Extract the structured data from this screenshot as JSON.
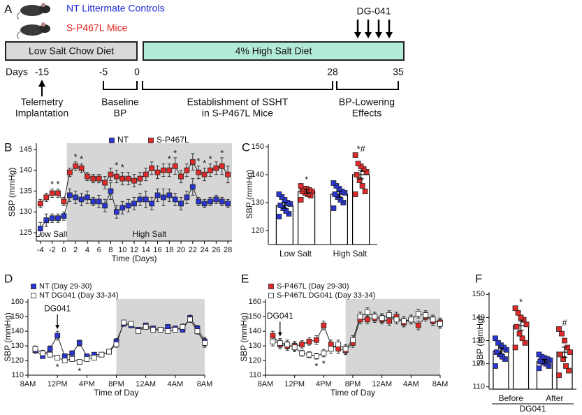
{
  "timeline": {
    "panel": "A",
    "legend": [
      {
        "label": "NT Littermate Controls",
        "color": "#1f2bd6"
      },
      {
        "label": "S-P467L Mice",
        "color": "#e0231f"
      }
    ],
    "treatment": "DG-041",
    "diets": [
      {
        "label": "Low Salt Chow Diet",
        "color": "#d9d9d9"
      },
      {
        "label": "4% High Salt Diet",
        "color": "#b3ead6"
      }
    ],
    "days_label": "Days",
    "days": [
      -15,
      -5,
      0,
      28,
      35
    ],
    "phases": [
      {
        "label": [
          "Telemetry",
          "Implantation"
        ]
      },
      {
        "label": [
          "Baseline",
          "BP"
        ]
      },
      {
        "label": [
          "Establishment of SSHT",
          "in S-P467L Mice"
        ]
      },
      {
        "label": [
          "BP-Lowering",
          "Effects"
        ]
      }
    ]
  },
  "chart_data": [
    {
      "type": "line",
      "panel": "B",
      "xlabel": "Time (Days)",
      "ylabel": "SBP (mmHg)",
      "x": [
        -4,
        -3,
        -2,
        -1,
        0,
        1,
        2,
        3,
        4,
        5,
        6,
        7,
        8,
        9,
        10,
        11,
        12,
        13,
        14,
        15,
        16,
        17,
        18,
        19,
        20,
        21,
        22,
        23,
        24,
        25,
        26,
        27,
        28
      ],
      "xlim": [
        -4.7,
        28.7
      ],
      "xticks": [
        -4,
        -2,
        0,
        2,
        4,
        6,
        8,
        10,
        12,
        14,
        16,
        18,
        20,
        22,
        24,
        26,
        28
      ],
      "ylim": [
        123,
        146.5
      ],
      "yticks": [
        125,
        130,
        135,
        140,
        145
      ],
      "legend": "top",
      "shade_color": "#d6d6d6",
      "regions": [
        {
          "label": "Low Salt",
          "x": [
            -4.7,
            0.5
          ]
        },
        {
          "label": "High Salt",
          "x": [
            0.5,
            28.7
          ],
          "shaded": true
        }
      ],
      "series": [
        {
          "name": "NT",
          "color": "#2b35d0",
          "values": [
            126,
            128,
            128.5,
            128.5,
            129,
            134,
            133.5,
            133,
            133.5,
            132.5,
            132.5,
            131.5,
            135,
            130,
            131,
            131.5,
            132,
            133,
            133,
            132,
            134,
            133.5,
            134,
            133,
            132,
            133.5,
            136,
            132.5,
            132,
            132.5,
            133,
            132.5,
            132
          ],
          "errors": [
            1.5,
            1.5,
            1,
            1,
            1,
            1.5,
            1.5,
            1.5,
            1.5,
            1,
            1.5,
            1.5,
            2,
            1.5,
            1.5,
            1.5,
            1.5,
            1.5,
            2,
            1.5,
            1.5,
            2,
            1.5,
            1.5,
            1.5,
            1.5,
            2,
            1,
            1,
            1,
            1,
            1,
            1
          ]
        },
        {
          "name": "S-P467L",
          "color": "#e02a2a",
          "values": [
            132,
            133.5,
            134.5,
            134.5,
            132.5,
            139.5,
            141,
            140.5,
            138.5,
            138,
            138,
            137,
            139,
            138.5,
            138,
            138,
            137.5,
            138,
            139,
            140.5,
            139.5,
            140,
            140,
            141,
            138.5,
            140,
            142,
            139.5,
            139,
            140,
            140.5,
            141,
            139
          ],
          "errors": [
            1,
            1,
            1,
            1,
            1,
            1,
            1,
            1,
            1,
            1,
            1,
            1.5,
            1.5,
            1.5,
            1.5,
            1.5,
            1.5,
            1.5,
            1.5,
            1.5,
            1.5,
            1.5,
            1.5,
            2,
            1.5,
            1.5,
            2,
            1.5,
            1.5,
            1.5,
            1.5,
            2,
            2
          ]
        }
      ],
      "annotations": [
        {
          "x": -2,
          "label": "*",
          "position": "above"
        },
        {
          "x": -1,
          "label": "*",
          "position": "above"
        },
        {
          "x": 2,
          "label": "*",
          "position": "above"
        },
        {
          "x": 3,
          "label": "*",
          "position": "above"
        },
        {
          "x": 9,
          "label": "*",
          "position": "above"
        },
        {
          "x": 10,
          "label": "*",
          "position": "above"
        },
        {
          "x": 18,
          "label": "*",
          "position": "above"
        },
        {
          "x": 19,
          "label": "*",
          "position": "above"
        },
        {
          "x": 23,
          "label": "*",
          "position": "above"
        },
        {
          "x": 24,
          "label": "*",
          "position": "above"
        },
        {
          "x": 25,
          "label": "*",
          "position": "above"
        },
        {
          "x": 27,
          "label": "*",
          "position": "above"
        }
      ]
    },
    {
      "type": "bar-scatter",
      "panel": "C",
      "ylabel": "SBP (mmHg)",
      "categories": [
        "Low Salt",
        "High Salt"
      ],
      "ylim": [
        115,
        151
      ],
      "yticks": [
        120,
        130,
        140,
        150
      ],
      "series": [
        {
          "color": "#2b35d0",
          "values": [
            129,
            133
          ],
          "errors": [
            1,
            1
          ],
          "points": [
            [
              125,
              126,
              127,
              128,
              129,
              129.5,
              130,
              131,
              132,
              133
            ],
            [
              128,
              130,
              131,
              132,
              133,
              133.5,
              134,
              135,
              136,
              137
            ]
          ]
        },
        {
          "color": "#e02a2a",
          "values": [
            134,
            140
          ],
          "errors": [
            0.7,
            1.5
          ],
          "points": [
            [
              131,
              132.5,
              133,
              133.5,
              134,
              134,
              134.5,
              135,
              135,
              136
            ],
            [
              133,
              134,
              136,
              138,
              140,
              141,
              142,
              143,
              144,
              147
            ]
          ]
        }
      ],
      "annotations": [
        {
          "category": 0,
          "series": 1,
          "label": "*"
        },
        {
          "category": 1,
          "series": 1,
          "label": "*#"
        }
      ]
    },
    {
      "type": "line",
      "panel": "D",
      "xlabel": "Time of Day",
      "ylabel": "SBP (mmHg)",
      "x": [
        1,
        2,
        3,
        4,
        5,
        6,
        7,
        8,
        9,
        10,
        11,
        12,
        13,
        14,
        15,
        16,
        17,
        18,
        19,
        20,
        21,
        22,
        23,
        24
      ],
      "xlim": [
        0,
        24
      ],
      "xticks": [
        {
          "value": 0,
          "label": "8AM"
        },
        {
          "value": 4,
          "label": "12PM"
        },
        {
          "value": 8,
          "label": "4PM"
        },
        {
          "value": 12,
          "label": "8PM"
        },
        {
          "value": 16,
          "label": "12AM"
        },
        {
          "value": 20,
          "label": "4AM"
        },
        {
          "value": 24,
          "label": "8AM"
        }
      ],
      "ylim": [
        110,
        162
      ],
      "yticks": [
        110,
        120,
        130,
        140,
        150,
        160
      ],
      "legend": "top-left",
      "shade_color": "#d6d6d6",
      "regions": [
        {
          "x": [
            12,
            24
          ],
          "shaded": true
        }
      ],
      "series": [
        {
          "name": "NT (Day 29-30)",
          "color": "#2b35d0",
          "values": [
            127,
            123,
            128,
            137,
            123,
            125,
            132,
            123,
            124,
            124,
            126,
            133,
            145,
            144,
            141,
            144,
            142,
            141,
            143,
            142,
            141,
            149,
            142,
            133
          ],
          "errors": [
            2,
            1.5,
            2,
            3,
            1.5,
            1.5,
            2,
            1.5,
            1.5,
            1.5,
            1.5,
            2,
            1.5,
            1.5,
            1.5,
            1.5,
            1.5,
            1.5,
            1.5,
            1.5,
            1.5,
            2,
            2,
            3
          ]
        },
        {
          "name": "NT DG041 (Day 33-34)",
          "color": "#ffffff",
          "values": [
            128,
            125,
            124,
            122,
            120,
            121,
            119,
            121,
            122,
            124,
            126,
            131,
            146,
            145,
            140,
            143,
            141,
            141,
            140,
            141,
            143,
            148,
            140,
            132
          ],
          "errors": [
            2,
            2,
            1.5,
            1.5,
            1.5,
            1.5,
            1.5,
            1.5,
            1.5,
            1.5,
            1.5,
            2,
            1.5,
            1.5,
            1.5,
            1.5,
            1.5,
            1.5,
            1.5,
            1.5,
            2,
            2,
            2,
            3
          ]
        }
      ],
      "annotations": [
        {
          "x": 4,
          "label": "DG041",
          "position": "arrow"
        },
        {
          "x": 4,
          "label": "*",
          "position": "below"
        },
        {
          "x": 7,
          "label": "*",
          "position": "below"
        }
      ]
    },
    {
      "type": "line",
      "panel": "E",
      "xlabel": "Time of Day",
      "ylabel": "SBP (mmHg)",
      "x": [
        1,
        2,
        3,
        4,
        5,
        6,
        7,
        8,
        9,
        10,
        11,
        12,
        13,
        14,
        15,
        16,
        17,
        18,
        19,
        20,
        21,
        22,
        23,
        24
      ],
      "xlim": [
        0,
        24
      ],
      "xticks": [
        {
          "value": 0,
          "label": "8AM"
        },
        {
          "value": 4,
          "label": "12PM"
        },
        {
          "value": 8,
          "label": "4PM"
        },
        {
          "value": 12,
          "label": "8PM"
        },
        {
          "value": 16,
          "label": "12AM"
        },
        {
          "value": 20,
          "label": "4AM"
        },
        {
          "value": 24,
          "label": "8AM"
        }
      ],
      "ylim": [
        110,
        162
      ],
      "yticks": [
        110,
        120,
        130,
        140,
        150,
        160
      ],
      "legend": "top-left",
      "shade_color": "#d6d6d6",
      "regions": [
        {
          "x": [
            11,
            24
          ],
          "shaded": true
        }
      ],
      "series": [
        {
          "name": "S-P467L (Day 29-30)",
          "color": "#e02a2a",
          "values": [
            137,
            131,
            130,
            130,
            131,
            133,
            134,
            144,
            131,
            128,
            127,
            132,
            148,
            148,
            149,
            148,
            147,
            150,
            146,
            148,
            144,
            150,
            147,
            146
          ],
          "errors": [
            3,
            3,
            3,
            3,
            2.5,
            2.5,
            3,
            3,
            3,
            3,
            3,
            3,
            3,
            3,
            3,
            3,
            3,
            3,
            3,
            3,
            3,
            3,
            3,
            3
          ]
        },
        {
          "name": "S-P467L DG041 (Day 33-34)",
          "color": "#ffffff",
          "values": [
            133,
            132,
            131,
            129,
            125,
            124,
            123,
            125,
            128,
            131,
            128,
            134,
            150,
            153,
            150,
            149,
            151,
            148,
            147,
            148,
            152,
            151,
            148,
            145
          ],
          "errors": [
            3,
            3,
            3,
            3,
            2,
            2,
            2,
            2.5,
            3,
            3,
            3,
            3,
            3,
            3,
            3,
            3,
            3,
            3,
            3,
            3,
            3,
            3,
            3,
            3
          ]
        }
      ],
      "annotations": [
        {
          "x": 2,
          "label": "DG041",
          "position": "arrow"
        },
        {
          "x": 7,
          "label": "*",
          "position": "below"
        },
        {
          "x": 8,
          "label": "*",
          "position": "below"
        }
      ]
    },
    {
      "type": "bar-scatter",
      "panel": "F",
      "ylabel": "SBP (mmHg)",
      "xlabel": "DG041",
      "categories": [
        "Before",
        "After"
      ],
      "ylim": [
        109,
        151
      ],
      "yticks": [
        110,
        120,
        130,
        140,
        150
      ],
      "series": [
        {
          "color": "#2b35d0",
          "values": [
            125.5,
            121
          ],
          "errors": [
            1.2,
            0.8
          ],
          "points": [
            [
              119,
              122,
              123,
              124,
              125,
              126,
              127,
              128,
              129,
              131
            ],
            [
              118,
              119,
              120,
              120.5,
              121,
              121.5,
              122,
              122.5,
              123,
              124
            ]
          ]
        },
        {
          "color": "#e02a2a",
          "values": [
            136.5,
            125
          ],
          "errors": [
            2,
            2.2
          ],
          "points": [
            [
              127,
              129,
              131,
              133,
              136,
              137,
              139,
              140,
              142,
              144
            ],
            [
              115,
              117,
              119,
              122,
              124,
              125,
              127,
              130,
              133,
              135
            ]
          ]
        }
      ],
      "annotations": [
        {
          "category": 0,
          "series": 1,
          "label": "*"
        },
        {
          "category": 1,
          "series": 1,
          "label": "#"
        }
      ]
    }
  ]
}
